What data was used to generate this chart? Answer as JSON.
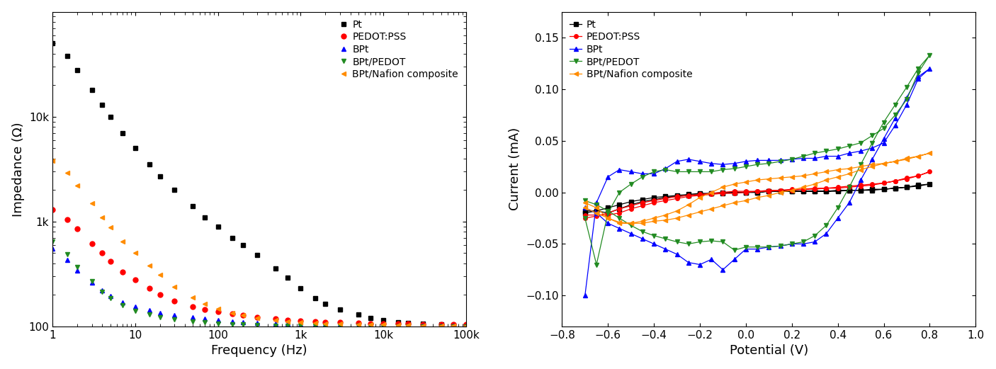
{
  "impedance": {
    "xlabel": "Frequency (Hz)",
    "ylabel": "Impedance (Ω)",
    "xlim": [
      1,
      100000
    ],
    "ylim": [
      100,
      100000
    ],
    "series": [
      {
        "label": "Pt",
        "color": "#000000",
        "marker": "s",
        "markersize": 5,
        "freq": [
          1,
          1.5,
          2,
          3,
          4,
          5,
          7,
          10,
          15,
          20,
          30,
          50,
          70,
          100,
          150,
          200,
          300,
          500,
          700,
          1000,
          1500,
          2000,
          3000,
          5000,
          7000,
          10000,
          15000,
          20000,
          30000,
          50000,
          70000,
          100000
        ],
        "imp": [
          50000,
          38000,
          28000,
          18000,
          13000,
          10000,
          7000,
          5000,
          3500,
          2700,
          2000,
          1400,
          1100,
          900,
          700,
          600,
          480,
          360,
          290,
          230,
          185,
          165,
          145,
          130,
          120,
          115,
          110,
          108,
          106,
          104,
          103,
          102
        ]
      },
      {
        "label": "PEDOT:PSS",
        "color": "#ff0000",
        "marker": "o",
        "markersize": 5,
        "freq": [
          1,
          1.5,
          2,
          3,
          4,
          5,
          7,
          10,
          15,
          20,
          30,
          50,
          70,
          100,
          150,
          200,
          300,
          500,
          700,
          1000,
          1500,
          2000,
          3000,
          5000,
          7000,
          10000,
          15000,
          20000,
          30000,
          50000,
          70000,
          100000
        ],
        "imp": [
          1300,
          1050,
          850,
          620,
          500,
          420,
          330,
          280,
          230,
          200,
          175,
          155,
          145,
          138,
          132,
          128,
          123,
          118,
          115,
          113,
          111,
          110,
          109,
          108,
          107,
          107,
          106,
          106,
          105,
          105,
          104,
          104
        ]
      },
      {
        "label": "BPt",
        "color": "#0000ff",
        "marker": "^",
        "markersize": 5,
        "freq": [
          1,
          1.5,
          2,
          3,
          4,
          5,
          7,
          10,
          15,
          20,
          30,
          50,
          70,
          100,
          150,
          200,
          300,
          500,
          700,
          1000,
          1500,
          2000,
          3000,
          5000,
          7000,
          10000,
          15000,
          20000,
          30000,
          50000,
          70000,
          100000
        ],
        "imp": [
          550,
          430,
          340,
          260,
          220,
          195,
          170,
          155,
          142,
          135,
          128,
          122,
          118,
          115,
          112,
          110,
          108,
          107,
          106,
          105,
          105,
          104,
          104,
          103,
          103,
          102,
          102,
          102,
          101,
          101,
          101,
          101
        ]
      },
      {
        "label": "BPt/PEDOT",
        "color": "#228B22",
        "marker": "v",
        "markersize": 5,
        "freq": [
          1,
          1.5,
          2,
          3,
          4,
          5,
          7,
          10,
          15,
          20,
          30,
          50,
          70,
          100,
          150,
          200,
          300,
          500,
          700,
          1000,
          1500,
          2000,
          3000,
          5000,
          7000,
          10000,
          15000,
          20000,
          30000,
          50000,
          70000,
          100000
        ],
        "imp": [
          650,
          490,
          370,
          270,
          215,
          185,
          158,
          140,
          130,
          123,
          116,
          112,
          109,
          107,
          105,
          104,
          103,
          102,
          102,
          101,
          101,
          101,
          101,
          101,
          100,
          100,
          100,
          100,
          100,
          100,
          100,
          100
        ]
      },
      {
        "label": "BPt/Nafion composite",
        "color": "#FF8C00",
        "marker": "<",
        "markersize": 5,
        "freq": [
          1,
          1.5,
          2,
          3,
          4,
          5,
          7,
          10,
          15,
          20,
          30,
          50,
          70,
          100,
          150,
          200,
          300,
          500,
          700,
          1000,
          1500,
          2000,
          3000,
          5000,
          7000,
          10000,
          15000,
          20000,
          30000,
          50000,
          70000,
          100000
        ],
        "imp": [
          3800,
          2900,
          2200,
          1500,
          1100,
          880,
          650,
          500,
          380,
          310,
          240,
          190,
          165,
          148,
          135,
          128,
          120,
          115,
          112,
          110,
          108,
          107,
          106,
          105,
          104,
          104,
          103,
          103,
          102,
          102,
          102,
          101
        ]
      }
    ],
    "xticks": [
      1,
      10,
      100,
      1000,
      10000,
      100000
    ],
    "xticklabels": [
      "1",
      "10",
      "100",
      "1k",
      "10k",
      "100k"
    ],
    "yticks": [
      100,
      1000,
      10000
    ],
    "yticklabels": [
      "100",
      "1k",
      "10k"
    ]
  },
  "cv": {
    "xlabel": "Potential (V)",
    "ylabel": "Current (mA)",
    "xlim": [
      -0.8,
      1.0
    ],
    "ylim": [
      -0.13,
      0.175
    ],
    "xticks": [
      -0.8,
      -0.6,
      -0.4,
      -0.2,
      0.0,
      0.2,
      0.4,
      0.6,
      0.8,
      1.0
    ],
    "yticks": [
      -0.1,
      -0.05,
      0.0,
      0.05,
      0.1,
      0.15
    ],
    "series": [
      {
        "label": "Pt",
        "color": "#000000",
        "marker": "s",
        "markersize": 4,
        "potential": [
          -0.7,
          -0.65,
          -0.6,
          -0.55,
          -0.5,
          -0.45,
          -0.4,
          -0.35,
          -0.3,
          -0.25,
          -0.2,
          -0.15,
          -0.1,
          -0.05,
          0.0,
          0.05,
          0.1,
          0.15,
          0.2,
          0.25,
          0.3,
          0.35,
          0.4,
          0.45,
          0.5,
          0.55,
          0.6,
          0.65,
          0.7,
          0.75,
          0.8,
          0.75,
          0.7,
          0.65,
          0.6,
          0.55,
          0.5,
          0.45,
          0.4,
          0.35,
          0.3,
          0.25,
          0.2,
          0.15,
          0.1,
          0.05,
          0.0,
          -0.05,
          -0.1,
          -0.15,
          -0.2,
          -0.25,
          -0.3,
          -0.35,
          -0.4,
          -0.45,
          -0.5,
          -0.55,
          -0.6,
          -0.65,
          -0.7
        ],
        "current": [
          -0.018,
          -0.018,
          -0.02,
          -0.016,
          -0.012,
          -0.009,
          -0.007,
          -0.005,
          -0.004,
          -0.003,
          -0.002,
          -0.001,
          -0.001,
          0.0,
          0.0,
          0.0,
          0.001,
          0.001,
          0.001,
          0.001,
          0.001,
          0.001,
          0.001,
          0.002,
          0.002,
          0.002,
          0.003,
          0.004,
          0.005,
          0.007,
          0.008,
          0.006,
          0.005,
          0.004,
          0.003,
          0.003,
          0.002,
          0.002,
          0.002,
          0.001,
          0.001,
          0.001,
          0.001,
          0.001,
          0.001,
          0.0,
          0.0,
          0.0,
          0.0,
          -0.001,
          -0.001,
          -0.002,
          -0.003,
          -0.004,
          -0.005,
          -0.007,
          -0.009,
          -0.012,
          -0.015,
          -0.018,
          -0.02
        ]
      },
      {
        "label": "PEDOT:PSS",
        "color": "#ff0000",
        "marker": "o",
        "markersize": 4,
        "potential": [
          -0.7,
          -0.65,
          -0.6,
          -0.55,
          -0.5,
          -0.45,
          -0.4,
          -0.35,
          -0.3,
          -0.25,
          -0.2,
          -0.15,
          -0.1,
          -0.05,
          0.0,
          0.05,
          0.1,
          0.15,
          0.2,
          0.25,
          0.3,
          0.35,
          0.4,
          0.45,
          0.5,
          0.55,
          0.6,
          0.65,
          0.7,
          0.75,
          0.8,
          0.75,
          0.7,
          0.65,
          0.6,
          0.55,
          0.5,
          0.45,
          0.4,
          0.35,
          0.3,
          0.25,
          0.2,
          0.15,
          0.1,
          0.05,
          0.0,
          -0.05,
          -0.1,
          -0.15,
          -0.2,
          -0.25,
          -0.3,
          -0.35,
          -0.4,
          -0.45,
          -0.5,
          -0.55,
          -0.6,
          -0.65,
          -0.7
        ],
        "current": [
          -0.022,
          -0.022,
          -0.022,
          -0.02,
          -0.016,
          -0.013,
          -0.01,
          -0.008,
          -0.006,
          -0.004,
          -0.003,
          -0.002,
          -0.001,
          -0.001,
          0.0,
          0.001,
          0.001,
          0.002,
          0.002,
          0.003,
          0.003,
          0.004,
          0.004,
          0.005,
          0.006,
          0.007,
          0.009,
          0.011,
          0.014,
          0.016,
          0.02,
          0.016,
          0.013,
          0.011,
          0.009,
          0.008,
          0.007,
          0.006,
          0.005,
          0.004,
          0.004,
          0.003,
          0.003,
          0.002,
          0.002,
          0.001,
          0.001,
          0.001,
          0.0,
          -0.001,
          -0.002,
          -0.003,
          -0.004,
          -0.006,
          -0.008,
          -0.01,
          -0.013,
          -0.016,
          -0.02,
          -0.023,
          -0.025
        ]
      },
      {
        "label": "BPt",
        "color": "#0000ff",
        "marker": "^",
        "markersize": 4,
        "potential": [
          -0.7,
          -0.65,
          -0.6,
          -0.55,
          -0.5,
          -0.45,
          -0.4,
          -0.35,
          -0.3,
          -0.25,
          -0.2,
          -0.15,
          -0.1,
          -0.05,
          0.0,
          0.05,
          0.1,
          0.15,
          0.2,
          0.25,
          0.3,
          0.35,
          0.4,
          0.45,
          0.5,
          0.55,
          0.6,
          0.65,
          0.7,
          0.75,
          0.8,
          0.75,
          0.7,
          0.65,
          0.6,
          0.55,
          0.5,
          0.45,
          0.4,
          0.35,
          0.3,
          0.25,
          0.2,
          0.15,
          0.1,
          0.05,
          0.0,
          -0.05,
          -0.1,
          -0.15,
          -0.2,
          -0.25,
          -0.3,
          -0.35,
          -0.4,
          -0.45,
          -0.5,
          -0.55,
          -0.6,
          -0.65,
          -0.7
        ],
        "current": [
          -0.1,
          -0.01,
          0.015,
          0.022,
          0.02,
          0.018,
          0.018,
          0.023,
          0.03,
          0.032,
          0.03,
          0.028,
          0.027,
          0.028,
          0.03,
          0.031,
          0.031,
          0.031,
          0.032,
          0.033,
          0.033,
          0.035,
          0.035,
          0.038,
          0.04,
          0.043,
          0.048,
          0.065,
          0.085,
          0.11,
          0.12,
          0.112,
          0.092,
          0.072,
          0.052,
          0.032,
          0.012,
          -0.01,
          -0.025,
          -0.04,
          -0.048,
          -0.05,
          -0.05,
          -0.052,
          -0.053,
          -0.055,
          -0.055,
          -0.065,
          -0.075,
          -0.065,
          -0.07,
          -0.068,
          -0.06,
          -0.055,
          -0.05,
          -0.045,
          -0.04,
          -0.035,
          -0.03,
          -0.02,
          -0.015
        ]
      },
      {
        "label": "BPt/PEDOT",
        "color": "#228B22",
        "marker": "v",
        "markersize": 4,
        "potential": [
          -0.7,
          -0.65,
          -0.6,
          -0.55,
          -0.5,
          -0.45,
          -0.4,
          -0.35,
          -0.3,
          -0.25,
          -0.2,
          -0.15,
          -0.1,
          -0.05,
          0.0,
          0.05,
          0.1,
          0.15,
          0.2,
          0.25,
          0.3,
          0.35,
          0.4,
          0.45,
          0.5,
          0.55,
          0.6,
          0.65,
          0.7,
          0.75,
          0.8,
          0.75,
          0.7,
          0.65,
          0.6,
          0.55,
          0.5,
          0.45,
          0.4,
          0.35,
          0.3,
          0.25,
          0.2,
          0.15,
          0.1,
          0.05,
          0.0,
          -0.05,
          -0.1,
          -0.15,
          -0.2,
          -0.25,
          -0.3,
          -0.35,
          -0.4,
          -0.45,
          -0.5,
          -0.55,
          -0.6,
          -0.65,
          -0.7
        ],
        "current": [
          -0.025,
          -0.07,
          -0.02,
          0.0,
          0.008,
          0.015,
          0.02,
          0.022,
          0.02,
          0.02,
          0.02,
          0.02,
          0.022,
          0.023,
          0.025,
          0.027,
          0.028,
          0.03,
          0.032,
          0.035,
          0.038,
          0.04,
          0.042,
          0.045,
          0.048,
          0.055,
          0.062,
          0.075,
          0.09,
          0.116,
          0.133,
          0.12,
          0.102,
          0.085,
          0.068,
          0.048,
          0.027,
          0.005,
          -0.015,
          -0.032,
          -0.042,
          -0.048,
          -0.05,
          -0.052,
          -0.053,
          -0.053,
          -0.053,
          -0.056,
          -0.048,
          -0.047,
          -0.048,
          -0.05,
          -0.048,
          -0.045,
          -0.042,
          -0.038,
          -0.032,
          -0.025,
          -0.018,
          -0.012,
          -0.008
        ]
      },
      {
        "label": "BPt/Nafion composite",
        "color": "#FF8C00",
        "marker": "<",
        "markersize": 4,
        "potential": [
          -0.7,
          -0.65,
          -0.6,
          -0.55,
          -0.5,
          -0.45,
          -0.4,
          -0.35,
          -0.3,
          -0.25,
          -0.2,
          -0.15,
          -0.1,
          -0.05,
          0.0,
          0.05,
          0.1,
          0.15,
          0.2,
          0.25,
          0.3,
          0.35,
          0.4,
          0.45,
          0.5,
          0.55,
          0.6,
          0.65,
          0.7,
          0.75,
          0.8,
          0.75,
          0.7,
          0.65,
          0.6,
          0.55,
          0.5,
          0.45,
          0.4,
          0.35,
          0.3,
          0.25,
          0.2,
          0.15,
          0.1,
          0.05,
          0.0,
          -0.05,
          -0.1,
          -0.15,
          -0.2,
          -0.25,
          -0.3,
          -0.35,
          -0.4,
          -0.45,
          -0.5,
          -0.55,
          -0.6,
          -0.65,
          -0.7
        ],
        "current": [
          -0.01,
          -0.015,
          -0.025,
          -0.03,
          -0.03,
          -0.028,
          -0.025,
          -0.022,
          -0.018,
          -0.012,
          -0.005,
          0.0,
          0.005,
          0.008,
          0.01,
          0.012,
          0.013,
          0.014,
          0.015,
          0.016,
          0.018,
          0.02,
          0.022,
          0.023,
          0.025,
          0.027,
          0.028,
          0.03,
          0.032,
          0.035,
          0.038,
          0.035,
          0.033,
          0.03,
          0.028,
          0.025,
          0.022,
          0.018,
          0.015,
          0.012,
          0.008,
          0.005,
          0.002,
          0.0,
          -0.003,
          -0.005,
          -0.008,
          -0.01,
          -0.013,
          -0.016,
          -0.019,
          -0.022,
          -0.025,
          -0.027,
          -0.028,
          -0.03,
          -0.03,
          -0.029,
          -0.025,
          -0.02,
          -0.015
        ]
      }
    ]
  },
  "background_color": "#ffffff"
}
